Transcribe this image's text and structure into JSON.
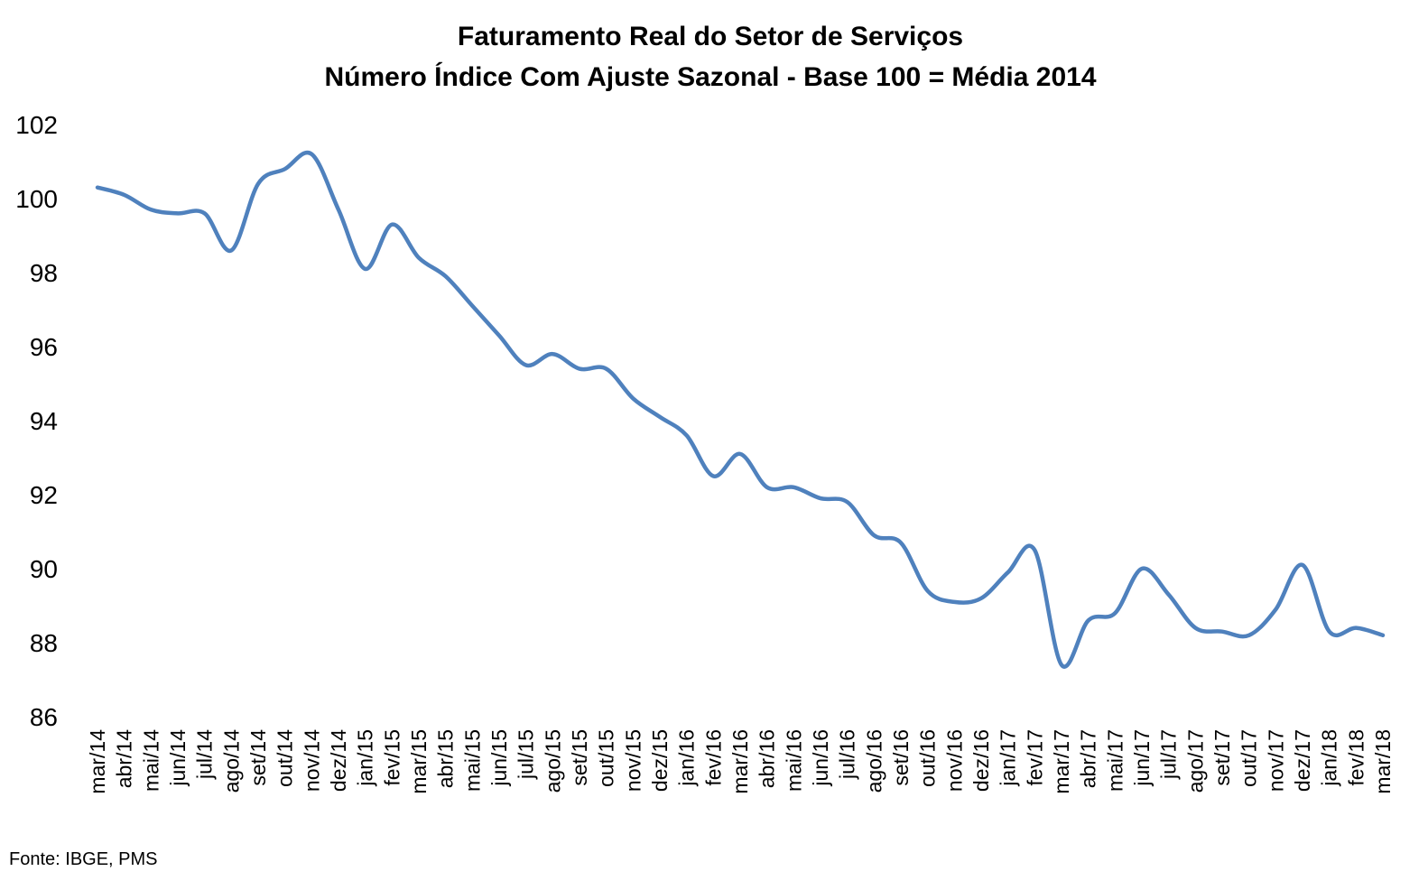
{
  "chart_data": {
    "type": "line",
    "title": "Faturamento Real do Setor de Serviços",
    "subtitle": "Número Índice Com Ajuste Sazonal - Base 100 = Média 2014",
    "xlabel": "",
    "ylabel": "",
    "ylim": [
      86,
      102
    ],
    "yticks": [
      "86",
      "88",
      "90",
      "92",
      "94",
      "96",
      "98",
      "100",
      "102"
    ],
    "grid": false,
    "legend": "none",
    "source": "Fonte: IBGE, PMS",
    "line_color": "#4F81BD",
    "categories": [
      "mar/14",
      "abr/14",
      "mai/14",
      "jun/14",
      "jul/14",
      "ago/14",
      "set/14",
      "out/14",
      "nov/14",
      "dez/14",
      "jan/15",
      "fev/15",
      "mar/15",
      "abr/15",
      "mai/15",
      "jun/15",
      "jul/15",
      "ago/15",
      "set/15",
      "out/15",
      "nov/15",
      "dez/15",
      "jan/16",
      "fev/16",
      "mar/16",
      "abr/16",
      "mai/16",
      "jun/16",
      "jul/16",
      "ago/16",
      "set/16",
      "out/16",
      "nov/16",
      "dez/16",
      "jan/17",
      "fev/17",
      "mar/17",
      "abr/17",
      "mai/17",
      "jun/17",
      "jul/17",
      "ago/17",
      "set/17",
      "out/17",
      "nov/17",
      "dez/17",
      "jan/18",
      "fev/18",
      "mar/18"
    ],
    "values": [
      100.3,
      100.1,
      99.7,
      99.6,
      99.6,
      98.6,
      100.4,
      100.8,
      101.2,
      99.7,
      98.1,
      99.3,
      98.4,
      97.9,
      97.1,
      96.3,
      95.5,
      95.8,
      95.4,
      95.4,
      94.6,
      94.1,
      93.6,
      92.5,
      93.1,
      92.2,
      92.2,
      91.9,
      91.8,
      90.9,
      90.7,
      89.4,
      89.1,
      89.2,
      89.9,
      90.5,
      87.4,
      88.6,
      88.8,
      90.0,
      89.3,
      88.4,
      88.3,
      88.2,
      88.9,
      90.1,
      88.3,
      88.4,
      88.2
    ]
  }
}
